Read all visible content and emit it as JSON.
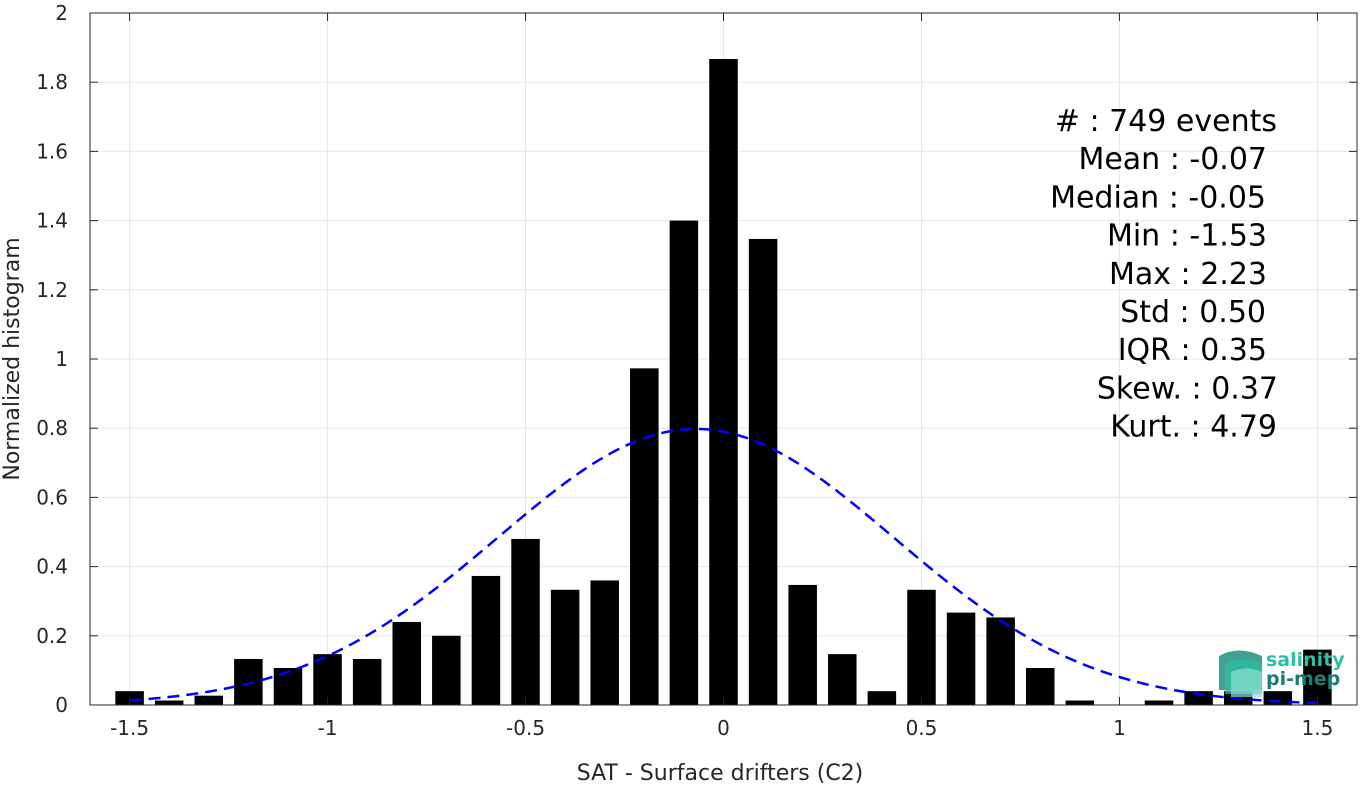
{
  "chart_data": {
    "type": "bar",
    "title": "",
    "xlabel": "SAT - Surface drifters (C2)",
    "ylabel": "Normalized histogram",
    "xlim": [
      -1.6,
      1.6
    ],
    "ylim": [
      0,
      2
    ],
    "grid": true,
    "x_ticks": [
      -1.5,
      -1,
      -0.5,
      0,
      0.5,
      1,
      1.5
    ],
    "x_tick_labels": [
      "-1.5",
      "-1",
      "-0.5",
      "0",
      "0.5",
      "1",
      "1.5"
    ],
    "y_ticks": [
      0,
      0.2,
      0.4,
      0.6,
      0.8,
      1,
      1.2,
      1.4,
      1.6,
      1.8,
      2
    ],
    "y_tick_labels": [
      "0",
      "0.2",
      "0.4",
      "0.6",
      "0.8",
      "1",
      "1.2",
      "1.4",
      "1.6",
      "1.8",
      "2"
    ],
    "bin_width": 0.1,
    "bar_color": "#000000",
    "x": [
      -1.5,
      -1.4,
      -1.3,
      -1.2,
      -1.1,
      -1.0,
      -0.9,
      -0.8,
      -0.7,
      -0.6,
      -0.5,
      -0.4,
      -0.3,
      -0.2,
      -0.1,
      0.0,
      0.1,
      0.2,
      0.3,
      0.4,
      0.5,
      0.6,
      0.7,
      0.8,
      0.9,
      1.0,
      1.1,
      1.2,
      1.3,
      1.4,
      1.5
    ],
    "values": [
      0.04,
      0.013,
      0.027,
      0.133,
      0.107,
      0.147,
      0.133,
      0.24,
      0.2,
      0.373,
      0.48,
      0.333,
      0.36,
      0.973,
      1.4,
      1.867,
      1.347,
      0.347,
      0.147,
      0.04,
      0.333,
      0.267,
      0.253,
      0.107,
      0.013,
      0.0,
      0.013,
      0.04,
      0.04,
      0.04,
      0.16
    ],
    "fit_curve": {
      "type": "normal",
      "mean": -0.07,
      "std": 0.5,
      "color": "#0000ff",
      "style": "dashed",
      "x_range": [
        -1.5,
        1.5
      ]
    },
    "stats_lines": [
      "#  : 749 events",
      "Mean : -0.07",
      "Median : -0.05",
      "Min : -1.53",
      "Max : 2.23",
      "Std : 0.50",
      "IQR : 0.35",
      "Skew. : 0.37",
      "Kurt. : 4.79"
    ]
  },
  "logo": {
    "line1": "salinity",
    "line2": "pi-mep",
    "color1": "#2bbfa4",
    "color2": "#1a7f73"
  }
}
